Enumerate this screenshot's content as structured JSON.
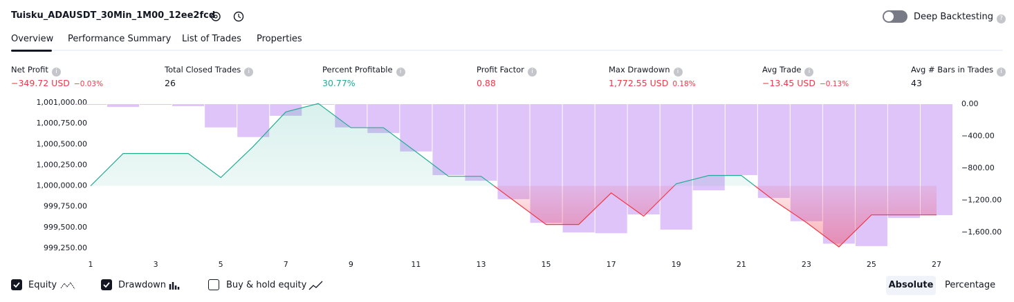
{
  "header": {
    "title": "Tuisku_ADAUSDT_30Min_1M00_12ee2fcd",
    "deep_backtesting": "Deep Backtesting"
  },
  "tabs": [
    "Overview",
    "Performance Summary",
    "List of Trades",
    "Properties"
  ],
  "metrics": [
    {
      "label": "Net Profit",
      "value": "−349.72 USD",
      "pct": "−0.03%",
      "color": "#f23645"
    },
    {
      "label": "Total Closed Trades",
      "value": "26",
      "color": "#131722"
    },
    {
      "label": "Percent Profitable",
      "value": "30.77%",
      "color": "#22ab94"
    },
    {
      "label": "Profit Factor",
      "value": "0.88",
      "color": "#f23645"
    },
    {
      "label": "Max Drawdown",
      "value": "1,772.55 USD",
      "pct": "0.18%",
      "color": "#f23645"
    },
    {
      "label": "Avg Trade",
      "value": "−13.45 USD",
      "pct": "−0.13%",
      "color": "#f23645"
    },
    {
      "label": "Avg # Bars in Trades",
      "value": "43",
      "color": "#131722"
    }
  ],
  "chart_data": {
    "type": "equity-drawdown",
    "x": [
      1,
      2,
      3,
      4,
      5,
      6,
      7,
      8,
      9,
      10,
      11,
      12,
      13,
      14,
      15,
      16,
      17,
      18,
      19,
      20,
      21,
      22,
      23,
      24,
      25,
      26,
      27
    ],
    "xlim": [
      0.5,
      27.5
    ],
    "xticks": [
      1,
      3,
      5,
      7,
      9,
      11,
      13,
      15,
      17,
      19,
      21,
      23,
      25,
      27
    ],
    "ylim": [
      999150,
      1001075
    ],
    "yticks": [
      {
        "value": 1001000,
        "label": "1,001,000.00"
      },
      {
        "value": 1000750,
        "label": "1,000,750.00"
      },
      {
        "value": 1000500,
        "label": "1,000,500.00"
      },
      {
        "value": 1000250,
        "label": "1,000,250.00"
      },
      {
        "value": 1000000,
        "label": "1,000,000.00"
      },
      {
        "value": 999750,
        "label": "999,750.00"
      },
      {
        "value": 999500,
        "label": "999,500.00"
      },
      {
        "value": 999250,
        "label": "999,250.00"
      }
    ],
    "y2lim": [
      -1900,
      95
    ],
    "y2ticks": [
      {
        "value": 0,
        "label": "0.00"
      },
      {
        "value": -400,
        "label": "−400.00"
      },
      {
        "value": -800,
        "label": "−800.00"
      },
      {
        "value": -1200,
        "label": "−1,200.00"
      },
      {
        "value": -1600,
        "label": "−1,600.00"
      }
    ],
    "series": [
      {
        "name": "Equity",
        "color": "#22ab94",
        "negative_color": "#f23645",
        "values": [
          1000000,
          1000390,
          1000390,
          1000390,
          1000100,
          1000475,
          1000890,
          1000990,
          1000700,
          1000700,
          1000410,
          1000115,
          1000115,
          999825,
          999535,
          999535,
          999915,
          999635,
          1000025,
          1000125,
          1000125,
          999825,
          999560,
          999265,
          999650,
          999650,
          999650
        ]
      },
      {
        "name": "Drawdown",
        "color": "#c89df5",
        "axis": "y2",
        "values": [
          -5,
          -35,
          -5,
          -25,
          -290,
          -410,
          -145,
          0,
          -290,
          -360,
          -590,
          -885,
          -955,
          -1185,
          -1480,
          -1600,
          -1610,
          -1375,
          -1565,
          -1075,
          -885,
          -1170,
          -1460,
          -1740,
          -1770,
          -1420,
          -1385
        ]
      }
    ],
    "extra_toggle": "Buy & hold equity",
    "modes": [
      "Absolute",
      "Percentage"
    ]
  }
}
